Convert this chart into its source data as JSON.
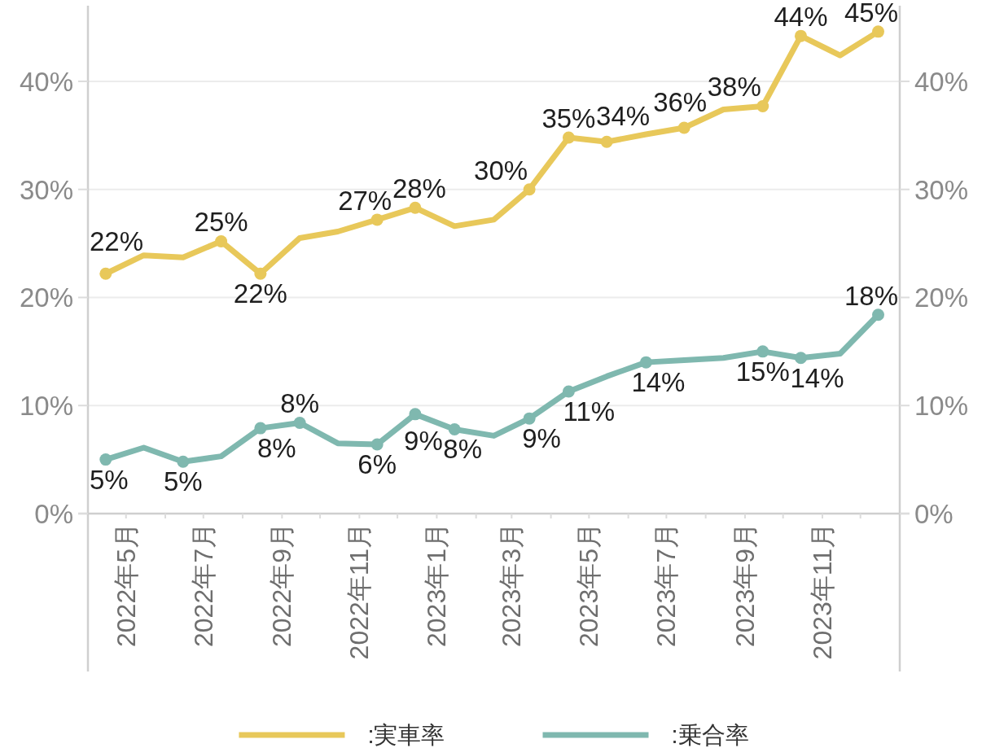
{
  "chart_data": {
    "type": "line",
    "x": [
      "2022-04-15",
      "2022-05-15",
      "2022-06-15",
      "2022-07-15",
      "2022-08-15",
      "2022-09-15",
      "2022-10-15",
      "2022-11-15",
      "2022-12-15",
      "2023-01-15",
      "2023-02-15",
      "2023-03-15",
      "2023-04-15",
      "2023-05-15",
      "2023-06-15",
      "2023-07-15",
      "2023-08-15",
      "2023-09-15",
      "2023-10-15",
      "2023-11-15",
      "2023-12-15"
    ],
    "xlim": [
      "2022-04",
      "2024-01"
    ],
    "xticks": [
      {
        "value": "2022-05",
        "label": "2022年5月"
      },
      {
        "value": "2022-06",
        "label": null
      },
      {
        "value": "2022-07",
        "label": "2022年7月"
      },
      {
        "value": "2022-08",
        "label": null
      },
      {
        "value": "2022-09",
        "label": "2022年9月"
      },
      {
        "value": "2022-10",
        "label": null
      },
      {
        "value": "2022-11",
        "label": "2022年11月"
      },
      {
        "value": "2022-12",
        "label": null
      },
      {
        "value": "2023-01",
        "label": "2023年1月"
      },
      {
        "value": "2023-02",
        "label": null
      },
      {
        "value": "2023-03",
        "label": "2023年3月"
      },
      {
        "value": "2023-04",
        "label": null
      },
      {
        "value": "2023-05",
        "label": "2023年5月"
      },
      {
        "value": "2023-06",
        "label": null
      },
      {
        "value": "2023-07",
        "label": "2023年7月"
      },
      {
        "value": "2023-08",
        "label": null
      },
      {
        "value": "2023-09",
        "label": "2023年9月"
      },
      {
        "value": "2023-10",
        "label": null
      },
      {
        "value": "2023-11",
        "label": "2023年11月"
      },
      {
        "value": "2023-12",
        "label": null
      }
    ],
    "ylim": [
      0,
      47
    ],
    "yticks": [
      {
        "value": 0,
        "label": "0%"
      },
      {
        "value": 10,
        "label": "10%"
      },
      {
        "value": 20,
        "label": "20%"
      },
      {
        "value": 30,
        "label": "30%"
      },
      {
        "value": 40,
        "label": "40%"
      }
    ],
    "y2lim": [
      0,
      47
    ],
    "y2ticks": [
      {
        "value": 0,
        "label": "0%"
      },
      {
        "value": 10,
        "label": "10%"
      },
      {
        "value": 20,
        "label": "20%"
      },
      {
        "value": 30,
        "label": "30%"
      },
      {
        "value": 40,
        "label": "40%"
      }
    ],
    "grid": "y",
    "legend": "bottom",
    "marker": "circle",
    "series": [
      {
        "name": ":実車率",
        "color": "#e8c85a",
        "values": [
          22.2,
          23.9,
          23.7,
          25.2,
          22.2,
          25.5,
          26.1,
          27.2,
          28.3,
          26.6,
          27.2,
          30.0,
          34.8,
          34.4,
          35.1,
          35.7,
          37.4,
          37.7,
          44.2,
          42.4,
          44.6
        ],
        "value_labels": [
          "22%",
          null,
          null,
          "25%",
          "22%",
          null,
          null,
          "27%",
          "28%",
          null,
          null,
          "30%",
          "35%",
          "34%",
          null,
          "36%",
          null,
          "38%",
          "44%",
          null,
          "45%"
        ]
      },
      {
        "name": ":乗合率",
        "color": "#7fb8af",
        "values": [
          5.0,
          6.1,
          4.8,
          5.3,
          7.9,
          8.4,
          6.5,
          6.4,
          9.2,
          7.8,
          7.2,
          8.8,
          11.3,
          12.7,
          14.0,
          14.2,
          14.4,
          15.0,
          14.4,
          14.8,
          18.4
        ],
        "value_labels": [
          "5%",
          null,
          "5%",
          null,
          "8%",
          "8%",
          null,
          "6%",
          "9%",
          "8%",
          null,
          "9%",
          "11%",
          null,
          "14%",
          null,
          null,
          "15%",
          "14%",
          null,
          "18%"
        ]
      }
    ]
  }
}
